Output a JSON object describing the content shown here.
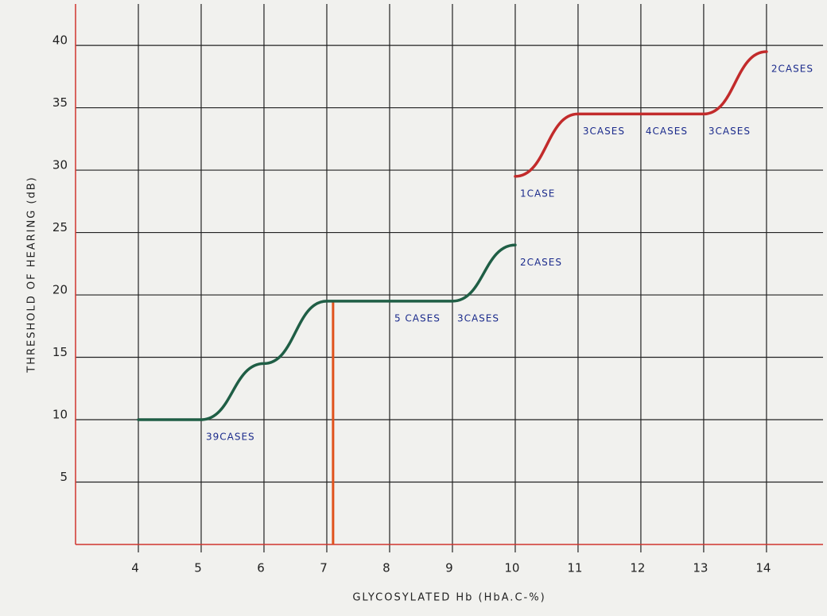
{
  "chart_data": {
    "type": "line",
    "x_label": "GLYCOSYLATED Hb (HbA.C-%)",
    "y_label": "THRESHOLD OF HEARING (dB)",
    "xlim": [
      3,
      14.9
    ],
    "ylim": [
      0,
      43
    ],
    "xticks": [
      4,
      5,
      6,
      7,
      8,
      9,
      10,
      11,
      12,
      13,
      14
    ],
    "yticks": [
      5,
      10,
      15,
      20,
      25,
      30,
      35,
      40
    ],
    "grid": true,
    "axis_color": "#d0352f",
    "series": [
      {
        "color": "#1f5e45",
        "x": [
          4,
          5,
          6,
          7,
          8,
          9,
          10
        ],
        "values": [
          10,
          10,
          14.5,
          19.5,
          19.5,
          19.5,
          24
        ],
        "labels": [
          null,
          "39CASES",
          null,
          null,
          "5 CASES",
          "3CASES",
          "2CASES"
        ]
      },
      {
        "color": "#c22b2b",
        "x": [
          10,
          11,
          12,
          13,
          14
        ],
        "values": [
          29.5,
          34.5,
          34.5,
          34.5,
          39.5
        ],
        "labels": [
          "1CASE",
          "3CASES",
          "4CASES",
          "3CASES",
          "2CASES"
        ]
      }
    ],
    "reference_line": {
      "x": 7.1,
      "color": "#e0521c"
    }
  }
}
